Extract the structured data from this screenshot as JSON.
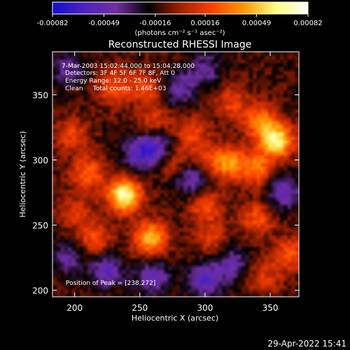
{
  "colorbar": {
    "tick_labels": [
      "-0.00082",
      "-0.00049",
      "-0.00016",
      "0.00016",
      "0.00049",
      "0.00082"
    ],
    "range": [
      -0.00082,
      0.00082
    ],
    "units_label": "(photons cm⁻² s⁻¹ asec⁻²)",
    "colors": [
      "#1010d0",
      "#5020c0",
      "#7030a0",
      "#000000",
      "#a02000",
      "#ff4000",
      "#ff9900",
      "#ffff80",
      "#ffffff"
    ]
  },
  "plot": {
    "title": "Reconstructed RHESSI Image",
    "info_lines": [
      "7-Mar-2003 15:02:44.000 to 15:04:28.000",
      "Detectors: 3F 4F 5F 6F 7F 8F, Att 0",
      "Energy Range: 12.0 - 25.0 keV",
      "Clean     Total counts: 1.46E+03"
    ],
    "peak_label": "Position of Peak = [238,272]"
  },
  "timestamp": "29-Apr-2022 15:41",
  "chart_data": {
    "type": "heatmap",
    "title": "Reconstructed RHESSI Image",
    "xlabel": "Heliocentric X (arcsec)",
    "ylabel": "Heliocentric Y (arcsec)",
    "xlim": [
      183,
      372
    ],
    "ylim": [
      195,
      383
    ],
    "x_ticks": [
      200,
      250,
      300,
      350
    ],
    "y_ticks": [
      200,
      250,
      300,
      350
    ],
    "value_range": [
      -0.00082,
      0.00082
    ],
    "peak": [
      238,
      272
    ],
    "sources": [
      {
        "x": 238,
        "y": 273,
        "value": 0.00082
      },
      {
        "x": 355,
        "y": 315,
        "value": 0.00075
      },
      {
        "x": 258,
        "y": 240,
        "value": 0.0006
      },
      {
        "x": 318,
        "y": 298,
        "value": 0.0005
      },
      {
        "x": 340,
        "y": 293,
        "value": 0.00045
      },
      {
        "x": 342,
        "y": 330,
        "value": 0.00045
      },
      {
        "x": 210,
        "y": 290,
        "value": 0.0004
      },
      {
        "x": 230,
        "y": 355,
        "value": 0.00035
      },
      {
        "x": 300,
        "y": 265,
        "value": 0.00035
      },
      {
        "x": 215,
        "y": 240,
        "value": 0.00035
      },
      {
        "x": 340,
        "y": 255,
        "value": 0.00035
      },
      {
        "x": 290,
        "y": 320,
        "value": 0.0003
      },
      {
        "x": 198,
        "y": 320,
        "value": 0.0003
      },
      {
        "x": 365,
        "y": 228,
        "value": 0.00035
      },
      {
        "x": 255,
        "y": 355,
        "value": 0.0003
      },
      {
        "x": 200,
        "y": 260,
        "value": 0.00025
      },
      {
        "x": 320,
        "y": 345,
        "value": 0.0003
      },
      {
        "x": 275,
        "y": 300,
        "value": 0.00025
      },
      {
        "x": 305,
        "y": 240,
        "value": 0.00025
      },
      {
        "x": 345,
        "y": 210,
        "value": 0.00025
      },
      {
        "x": 262,
        "y": 330,
        "value": 0.00025
      },
      {
        "x": 300,
        "y": 300,
        "value": 0.0002
      },
      {
        "x": 250,
        "y": 305,
        "value": -0.00045
      },
      {
        "x": 265,
        "y": 310,
        "value": -0.0004
      },
      {
        "x": 290,
        "y": 285,
        "value": -0.0004
      },
      {
        "x": 300,
        "y": 208,
        "value": -0.00045
      },
      {
        "x": 260,
        "y": 210,
        "value": -0.0004
      },
      {
        "x": 320,
        "y": 220,
        "value": -0.00035
      },
      {
        "x": 225,
        "y": 215,
        "value": -0.0004
      },
      {
        "x": 360,
        "y": 275,
        "value": -0.0004
      },
      {
        "x": 300,
        "y": 370,
        "value": -0.0003
      },
      {
        "x": 195,
        "y": 370,
        "value": -0.0003
      },
      {
        "x": 280,
        "y": 355,
        "value": -0.00035
      },
      {
        "x": 195,
        "y": 225,
        "value": -0.0003
      }
    ]
  }
}
